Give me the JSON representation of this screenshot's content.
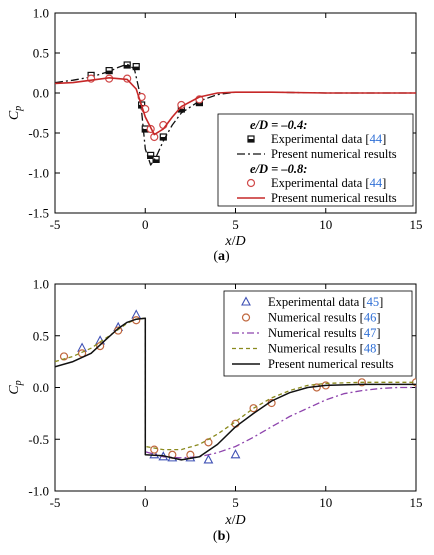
{
  "chart_data": [
    {
      "id": "a",
      "type": "line",
      "caption": "(a)",
      "xlabel": "x/D",
      "ylabel": "C_p",
      "xlim": [
        -5,
        15
      ],
      "ylim": [
        -1.5,
        1.0
      ],
      "xticks": [
        -5,
        0,
        5,
        10,
        15
      ],
      "yticks": [
        1.0,
        0.5,
        0.0,
        -0.5,
        -1.0,
        -1.5
      ],
      "legend": {
        "position": "right",
        "groups": [
          {
            "heading": "e/D = –0.4:",
            "entries": [
              {
                "text": "Experimental data [",
                "ref": "44",
                "close": "]",
                "marker": "square"
              },
              {
                "text": "Present numerical results",
                "ref": "",
                "close": "",
                "marker": "dashdot"
              }
            ]
          },
          {
            "heading": "e/D = –0.8:",
            "entries": [
              {
                "text": "Experimental data [",
                "ref": "44",
                "close": "]",
                "marker": "circle"
              },
              {
                "text": "Present numerical results",
                "ref": "",
                "close": "",
                "marker": "redline"
              }
            ]
          }
        ]
      },
      "series": [
        {
          "name": "e/D = –0.4 Experimental data [44]",
          "style": "square",
          "color": "#111111",
          "points": [
            [
              -3.0,
              0.22
            ],
            [
              -2.0,
              0.28
            ],
            [
              -1.0,
              0.35
            ],
            [
              -0.5,
              0.33
            ],
            [
              -0.2,
              -0.15
            ],
            [
              0.0,
              -0.45
            ],
            [
              0.3,
              -0.78
            ],
            [
              0.6,
              -0.83
            ],
            [
              1.0,
              -0.55
            ],
            [
              2.0,
              -0.2
            ],
            [
              3.0,
              -0.12
            ]
          ]
        },
        {
          "name": "e/D = –0.4 Present numerical results",
          "style": "dashdot",
          "color": "#111111",
          "points": [
            [
              -5,
              0.13
            ],
            [
              -4,
              0.16
            ],
            [
              -3,
              0.2
            ],
            [
              -2,
              0.27
            ],
            [
              -1.5,
              0.32
            ],
            [
              -1,
              0.36
            ],
            [
              -0.6,
              0.3
            ],
            [
              -0.3,
              0.0
            ],
            [
              0,
              -0.7
            ],
            [
              0.3,
              -0.9
            ],
            [
              0.6,
              -0.8
            ],
            [
              1,
              -0.6
            ],
            [
              1.5,
              -0.4
            ],
            [
              2,
              -0.25
            ],
            [
              3,
              -0.1
            ],
            [
              4,
              -0.02
            ],
            [
              5,
              0.01
            ],
            [
              7,
              0.01
            ],
            [
              10,
              0.0
            ],
            [
              15,
              0.0
            ]
          ]
        },
        {
          "name": "e/D = –0.8 Experimental data [44]",
          "style": "circle",
          "color": "#d04a4a",
          "points": [
            [
              -3.0,
              0.18
            ],
            [
              -2.0,
              0.18
            ],
            [
              -1.0,
              0.18
            ],
            [
              -0.2,
              -0.05
            ],
            [
              0.0,
              -0.2
            ],
            [
              0.3,
              -0.45
            ],
            [
              0.5,
              -0.55
            ],
            [
              1.0,
              -0.4
            ],
            [
              2.0,
              -0.15
            ],
            [
              3.0,
              -0.08
            ]
          ]
        },
        {
          "name": "e/D = –0.8 Present numerical results",
          "style": "redline",
          "color": "#c62828",
          "points": [
            [
              -5,
              0.12
            ],
            [
              -4,
              0.13
            ],
            [
              -3,
              0.16
            ],
            [
              -2,
              0.19
            ],
            [
              -1,
              0.17
            ],
            [
              -0.5,
              0.05
            ],
            [
              0,
              -0.3
            ],
            [
              0.5,
              -0.52
            ],
            [
              1,
              -0.45
            ],
            [
              1.5,
              -0.3
            ],
            [
              2,
              -0.17
            ],
            [
              3,
              -0.05
            ],
            [
              4,
              0.0
            ],
            [
              5,
              0.01
            ],
            [
              7,
              0.01
            ],
            [
              10,
              0.0
            ],
            [
              15,
              0.0
            ]
          ]
        }
      ]
    },
    {
      "id": "b",
      "type": "line",
      "caption": "(b)",
      "xlabel": "x/D",
      "ylabel": "C_p",
      "xlim": [
        -5,
        15
      ],
      "ylim": [
        -1.0,
        1.0
      ],
      "xticks": [
        -5,
        0,
        5,
        10,
        15
      ],
      "yticks": [
        1.0,
        0.5,
        0.0,
        -0.5,
        -1.0
      ],
      "legend": {
        "position": "top-right",
        "entries": [
          {
            "text": "Experimental data [",
            "ref": "45",
            "close": "]",
            "marker": "triangle"
          },
          {
            "text": "Numerical results [",
            "ref": "46",
            "close": "]",
            "marker": "circle"
          },
          {
            "text": "Numerical results [",
            "ref": "47",
            "close": "]",
            "marker": "purpledashdot"
          },
          {
            "text": "Numerical results [",
            "ref": "48",
            "close": "]",
            "marker": "olivedash"
          },
          {
            "text": "Present numerical results",
            "ref": "",
            "close": "",
            "marker": "blackline"
          }
        ]
      },
      "series": [
        {
          "name": "Experimental data [45]",
          "style": "triangle",
          "color": "#3f51b5",
          "points": [
            [
              -3.5,
              0.38
            ],
            [
              -2.5,
              0.45
            ],
            [
              -1.5,
              0.58
            ],
            [
              -0.5,
              0.7
            ],
            [
              0.5,
              -0.65
            ],
            [
              1.0,
              -0.67
            ],
            [
              1.5,
              -0.68
            ],
            [
              2.5,
              -0.68
            ],
            [
              3.5,
              -0.7
            ],
            [
              5.0,
              -0.65
            ]
          ]
        },
        {
          "name": "Numerical results [46]",
          "style": "circle",
          "color": "#c0683f",
          "points": [
            [
              -4.5,
              0.3
            ],
            [
              -3.5,
              0.33
            ],
            [
              -2.5,
              0.4
            ],
            [
              -1.5,
              0.55
            ],
            [
              -0.5,
              0.65
            ],
            [
              0.5,
              -0.6
            ],
            [
              1.5,
              -0.65
            ],
            [
              2.5,
              -0.65
            ],
            [
              3.5,
              -0.53
            ],
            [
              5.0,
              -0.35
            ],
            [
              6.0,
              -0.2
            ],
            [
              7.0,
              -0.15
            ],
            [
              9.5,
              0.0
            ],
            [
              10.0,
              0.02
            ],
            [
              12.0,
              0.05
            ],
            [
              15.0,
              0.05
            ]
          ]
        },
        {
          "name": "Numerical results [47]",
          "style": "purpledashdot",
          "color": "#8e44ad",
          "points": [
            [
              0,
              -0.62
            ],
            [
              1,
              -0.67
            ],
            [
              2,
              -0.68
            ],
            [
              3,
              -0.67
            ],
            [
              4,
              -0.63
            ],
            [
              5,
              -0.57
            ],
            [
              6,
              -0.48
            ],
            [
              7,
              -0.38
            ],
            [
              8,
              -0.28
            ],
            [
              9,
              -0.2
            ],
            [
              10,
              -0.12
            ],
            [
              11,
              -0.06
            ],
            [
              12,
              -0.03
            ],
            [
              13,
              -0.01
            ],
            [
              14,
              0.0
            ],
            [
              15,
              0.0
            ]
          ]
        },
        {
          "name": "Numerical results [48]",
          "style": "olivedash",
          "color": "#8a8a1e",
          "points": [
            [
              -5,
              0.25
            ],
            [
              -4,
              0.3
            ],
            [
              -3,
              0.38
            ],
            [
              -2,
              0.5
            ],
            [
              -1,
              0.62
            ],
            [
              -0.5,
              0.66
            ],
            [
              0,
              0.67
            ],
            [
              0,
              -0.57
            ],
            [
              1,
              -0.6
            ],
            [
              2,
              -0.6
            ],
            [
              3,
              -0.55
            ],
            [
              4,
              -0.45
            ],
            [
              5,
              -0.33
            ],
            [
              6,
              -0.2
            ],
            [
              7,
              -0.1
            ],
            [
              8,
              -0.03
            ],
            [
              9,
              0.02
            ],
            [
              10,
              0.04
            ],
            [
              12,
              0.05
            ],
            [
              15,
              0.05
            ]
          ]
        },
        {
          "name": "Present numerical results",
          "style": "blackline",
          "color": "#111111",
          "points": [
            [
              -5,
              0.2
            ],
            [
              -4,
              0.25
            ],
            [
              -3,
              0.33
            ],
            [
              -2.2,
              0.46
            ],
            [
              -1.5,
              0.57
            ],
            [
              -1,
              0.63
            ],
            [
              -0.5,
              0.66
            ],
            [
              0,
              0.67
            ],
            [
              0,
              -0.65
            ],
            [
              1,
              -0.66
            ],
            [
              2,
              -0.7
            ],
            [
              3,
              -0.67
            ],
            [
              4,
              -0.55
            ],
            [
              5,
              -0.38
            ],
            [
              6,
              -0.25
            ],
            [
              7,
              -0.13
            ],
            [
              8,
              -0.05
            ],
            [
              9,
              0.0
            ],
            [
              10,
              0.02
            ],
            [
              12,
              0.03
            ],
            [
              15,
              0.03
            ]
          ]
        }
      ]
    }
  ]
}
